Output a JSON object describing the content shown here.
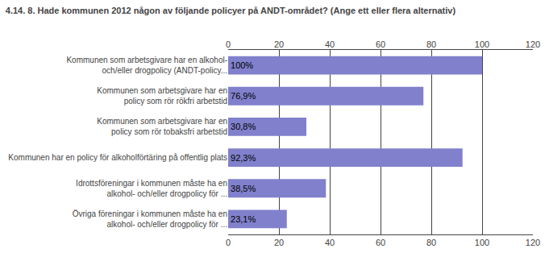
{
  "chart_data": {
    "type": "bar",
    "orientation": "horizontal",
    "title": "4.14. 8. Hade kommunen 2012 någon av följande policyer på ANDT-området? (Ange ett eller flera alternativ)",
    "categories": [
      "Övriga föreningar i kommunen måste ha en\nalkohol- och/eller drogpolicy för ...",
      "Idrottsföreningar i kommunen måste ha en\nalkohol- och/eller drogpolicy för ...",
      "Kommunen har en policy för alkoholförtäring på offentlig plats",
      "Kommunen som arbetsgivare har en\npolicy som rör tobaksfri arbetstid",
      "Kommunen som arbetsgivare har en\npolicy som rör rökfri arbetstid",
      "Kommunen som arbetsgivare har en alkohol-\noch/eller drogpolicy (ANDT-policy..."
    ],
    "values": [
      23.1,
      38.5,
      92.3,
      30.8,
      76.9,
      100.0
    ],
    "value_labels": [
      "23,1%",
      "38,5%",
      "92,3%",
      "30,8%",
      "76,9%",
      "100%"
    ],
    "data_labels": true,
    "color": "#8080cc",
    "xlim": [
      0,
      120
    ],
    "xticks": [
      0,
      20,
      40,
      60,
      80,
      100,
      120
    ],
    "grid": true
  }
}
